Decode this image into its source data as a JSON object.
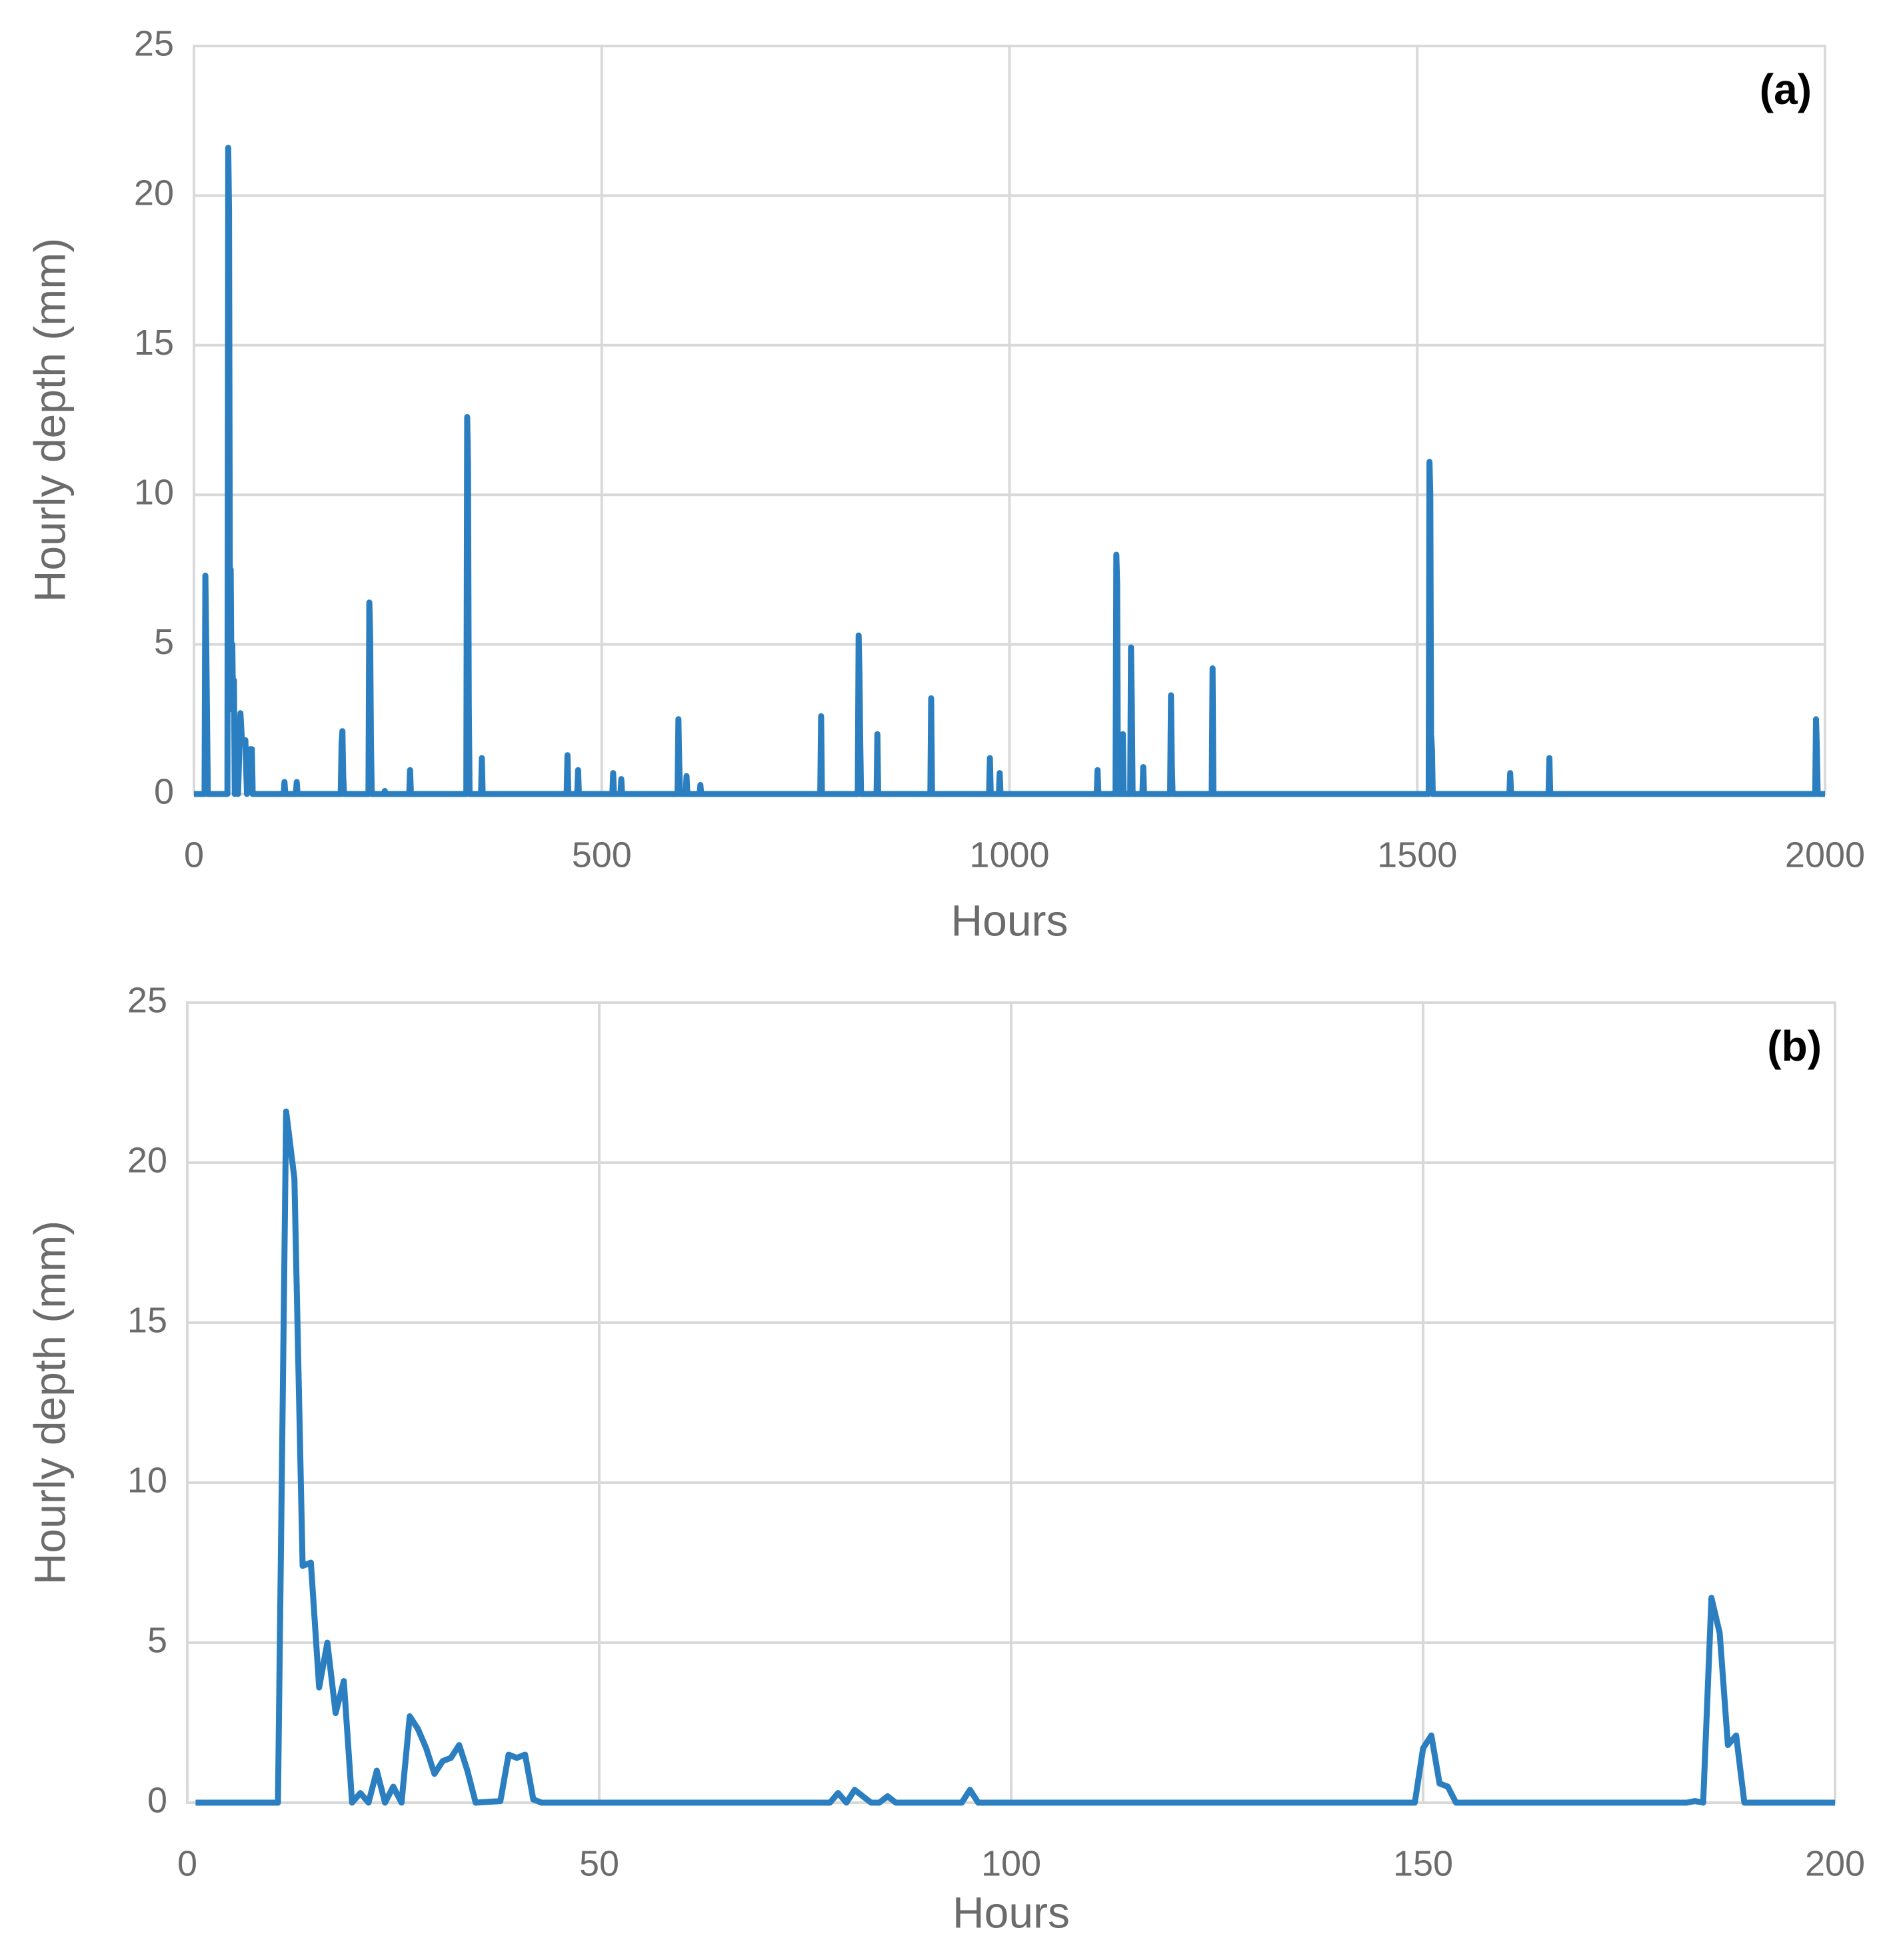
{
  "chart_data": [
    {
      "type": "line",
      "annotation": "(a)",
      "x_label": "Hours",
      "y_label": "Hourly depth (mm)",
      "grid": true,
      "xlim": [
        0,
        2000
      ],
      "xticks": [
        0,
        500,
        1000,
        1500,
        2000
      ],
      "ylim": [
        0,
        25
      ],
      "yticks": [
        0,
        5,
        10,
        15,
        20,
        25
      ],
      "x": [
        0,
        13,
        14,
        15,
        17,
        41,
        42,
        43,
        44,
        45,
        46,
        47,
        48,
        49,
        50,
        53,
        54,
        57,
        59,
        63,
        65,
        69,
        71,
        72,
        110,
        111,
        112,
        125,
        126,
        127,
        180,
        181,
        182,
        183,
        184,
        214,
        215,
        216,
        217,
        218,
        233,
        234,
        235,
        264,
        265,
        266,
        334,
        335,
        336,
        337,
        338,
        352,
        353,
        354,
        457,
        458,
        459,
        470,
        471,
        472,
        513,
        514,
        515,
        523,
        524,
        525,
        593,
        594,
        595,
        596,
        603,
        604,
        605,
        620,
        621,
        622,
        768,
        769,
        770,
        814,
        815,
        816,
        817,
        818,
        837,
        838,
        839,
        903,
        904,
        905,
        975,
        976,
        977,
        987,
        988,
        989,
        1107,
        1108,
        1109,
        1130,
        1131,
        1132,
        1133,
        1138,
        1139,
        1140,
        1148,
        1149,
        1150,
        1151,
        1163,
        1164,
        1165,
        1197,
        1198,
        1199,
        1200,
        1248,
        1249,
        1250,
        1514,
        1515,
        1516,
        1517,
        1518,
        1519,
        1613,
        1614,
        1615,
        1661,
        1662,
        1663,
        1988,
        1989,
        1990,
        1991,
        2000
      ],
      "series": [
        {
          "color": "#2b7fc0",
          "values": [
            0,
            0,
            7.3,
            5,
            0,
            0,
            21.6,
            19.5,
            7.4,
            7.5,
            3.6,
            5,
            2.8,
            3.8,
            0,
            1,
            0,
            2.7,
            1.7,
            1.8,
            0,
            1.5,
            1.5,
            0,
            0,
            0.4,
            0,
            0,
            0.4,
            0,
            0,
            1.7,
            2.1,
            0.6,
            0,
            0,
            6.4,
            5.3,
            1.8,
            0,
            0,
            0.1,
            0,
            0,
            0.8,
            0,
            0,
            12.6,
            11,
            3,
            0,
            0,
            1.2,
            0,
            0,
            1.3,
            0,
            0,
            0.8,
            0,
            0,
            0.7,
            0,
            0,
            0.5,
            0,
            0,
            2.5,
            1,
            0,
            0,
            0.6,
            0,
            0,
            0.3,
            0,
            0,
            2.6,
            0,
            0,
            5.3,
            4,
            1.7,
            0,
            0,
            2,
            0,
            0,
            3.2,
            0,
            0,
            1.2,
            0,
            0,
            0.7,
            0,
            0,
            0.8,
            0,
            0,
            8,
            7,
            0,
            0,
            2,
            0,
            0,
            4.9,
            3,
            0,
            0,
            0.9,
            0,
            0,
            3.3,
            1,
            0,
            0,
            4.2,
            0,
            0,
            11.1,
            10,
            2,
            1.5,
            0,
            0,
            0.7,
            0,
            0,
            1.2,
            0,
            0,
            2.5,
            1.5,
            0,
            0
          ]
        }
      ]
    },
    {
      "type": "line",
      "annotation": "(b)",
      "x_label": "Hours",
      "y_label": "Hourly depth (mm)",
      "grid": true,
      "xlim": [
        0,
        200
      ],
      "xticks": [
        0,
        50,
        100,
        150,
        200
      ],
      "ylim": [
        0,
        25
      ],
      "yticks": [
        0,
        5,
        10,
        15,
        20,
        25
      ],
      "x": [
        1,
        11,
        12,
        13,
        14,
        15,
        16,
        17,
        18,
        19,
        20,
        21,
        22,
        23,
        24,
        25,
        26,
        27,
        28,
        29,
        30,
        31,
        32,
        33,
        34,
        35,
        38,
        39,
        40,
        41,
        42,
        43,
        78,
        79,
        80,
        81,
        82,
        83,
        84,
        85,
        86,
        94,
        95,
        96,
        149,
        150,
        151,
        152,
        153,
        154,
        182,
        183,
        184,
        185,
        186,
        187,
        188,
        189,
        200
      ],
      "series": [
        {
          "color": "#2b7fc0",
          "values": [
            0,
            0,
            21.6,
            19.5,
            7.4,
            7.5,
            3.6,
            5,
            2.8,
            3.8,
            0,
            0.3,
            0,
            1,
            0,
            0.5,
            0,
            2.7,
            2.3,
            1.7,
            0.9,
            1.3,
            1.4,
            1.8,
            1,
            0,
            0.05,
            1.5,
            1.4,
            1.5,
            0.1,
            0,
            0,
            0.3,
            0,
            0.4,
            0.2,
            0,
            0,
            0.2,
            0,
            0,
            0.4,
            0,
            0,
            1.7,
            2.1,
            0.6,
            0.5,
            0,
            0,
            0.05,
            0,
            6.4,
            5.3,
            1.8,
            2.1,
            0,
            0
          ]
        }
      ]
    }
  ]
}
